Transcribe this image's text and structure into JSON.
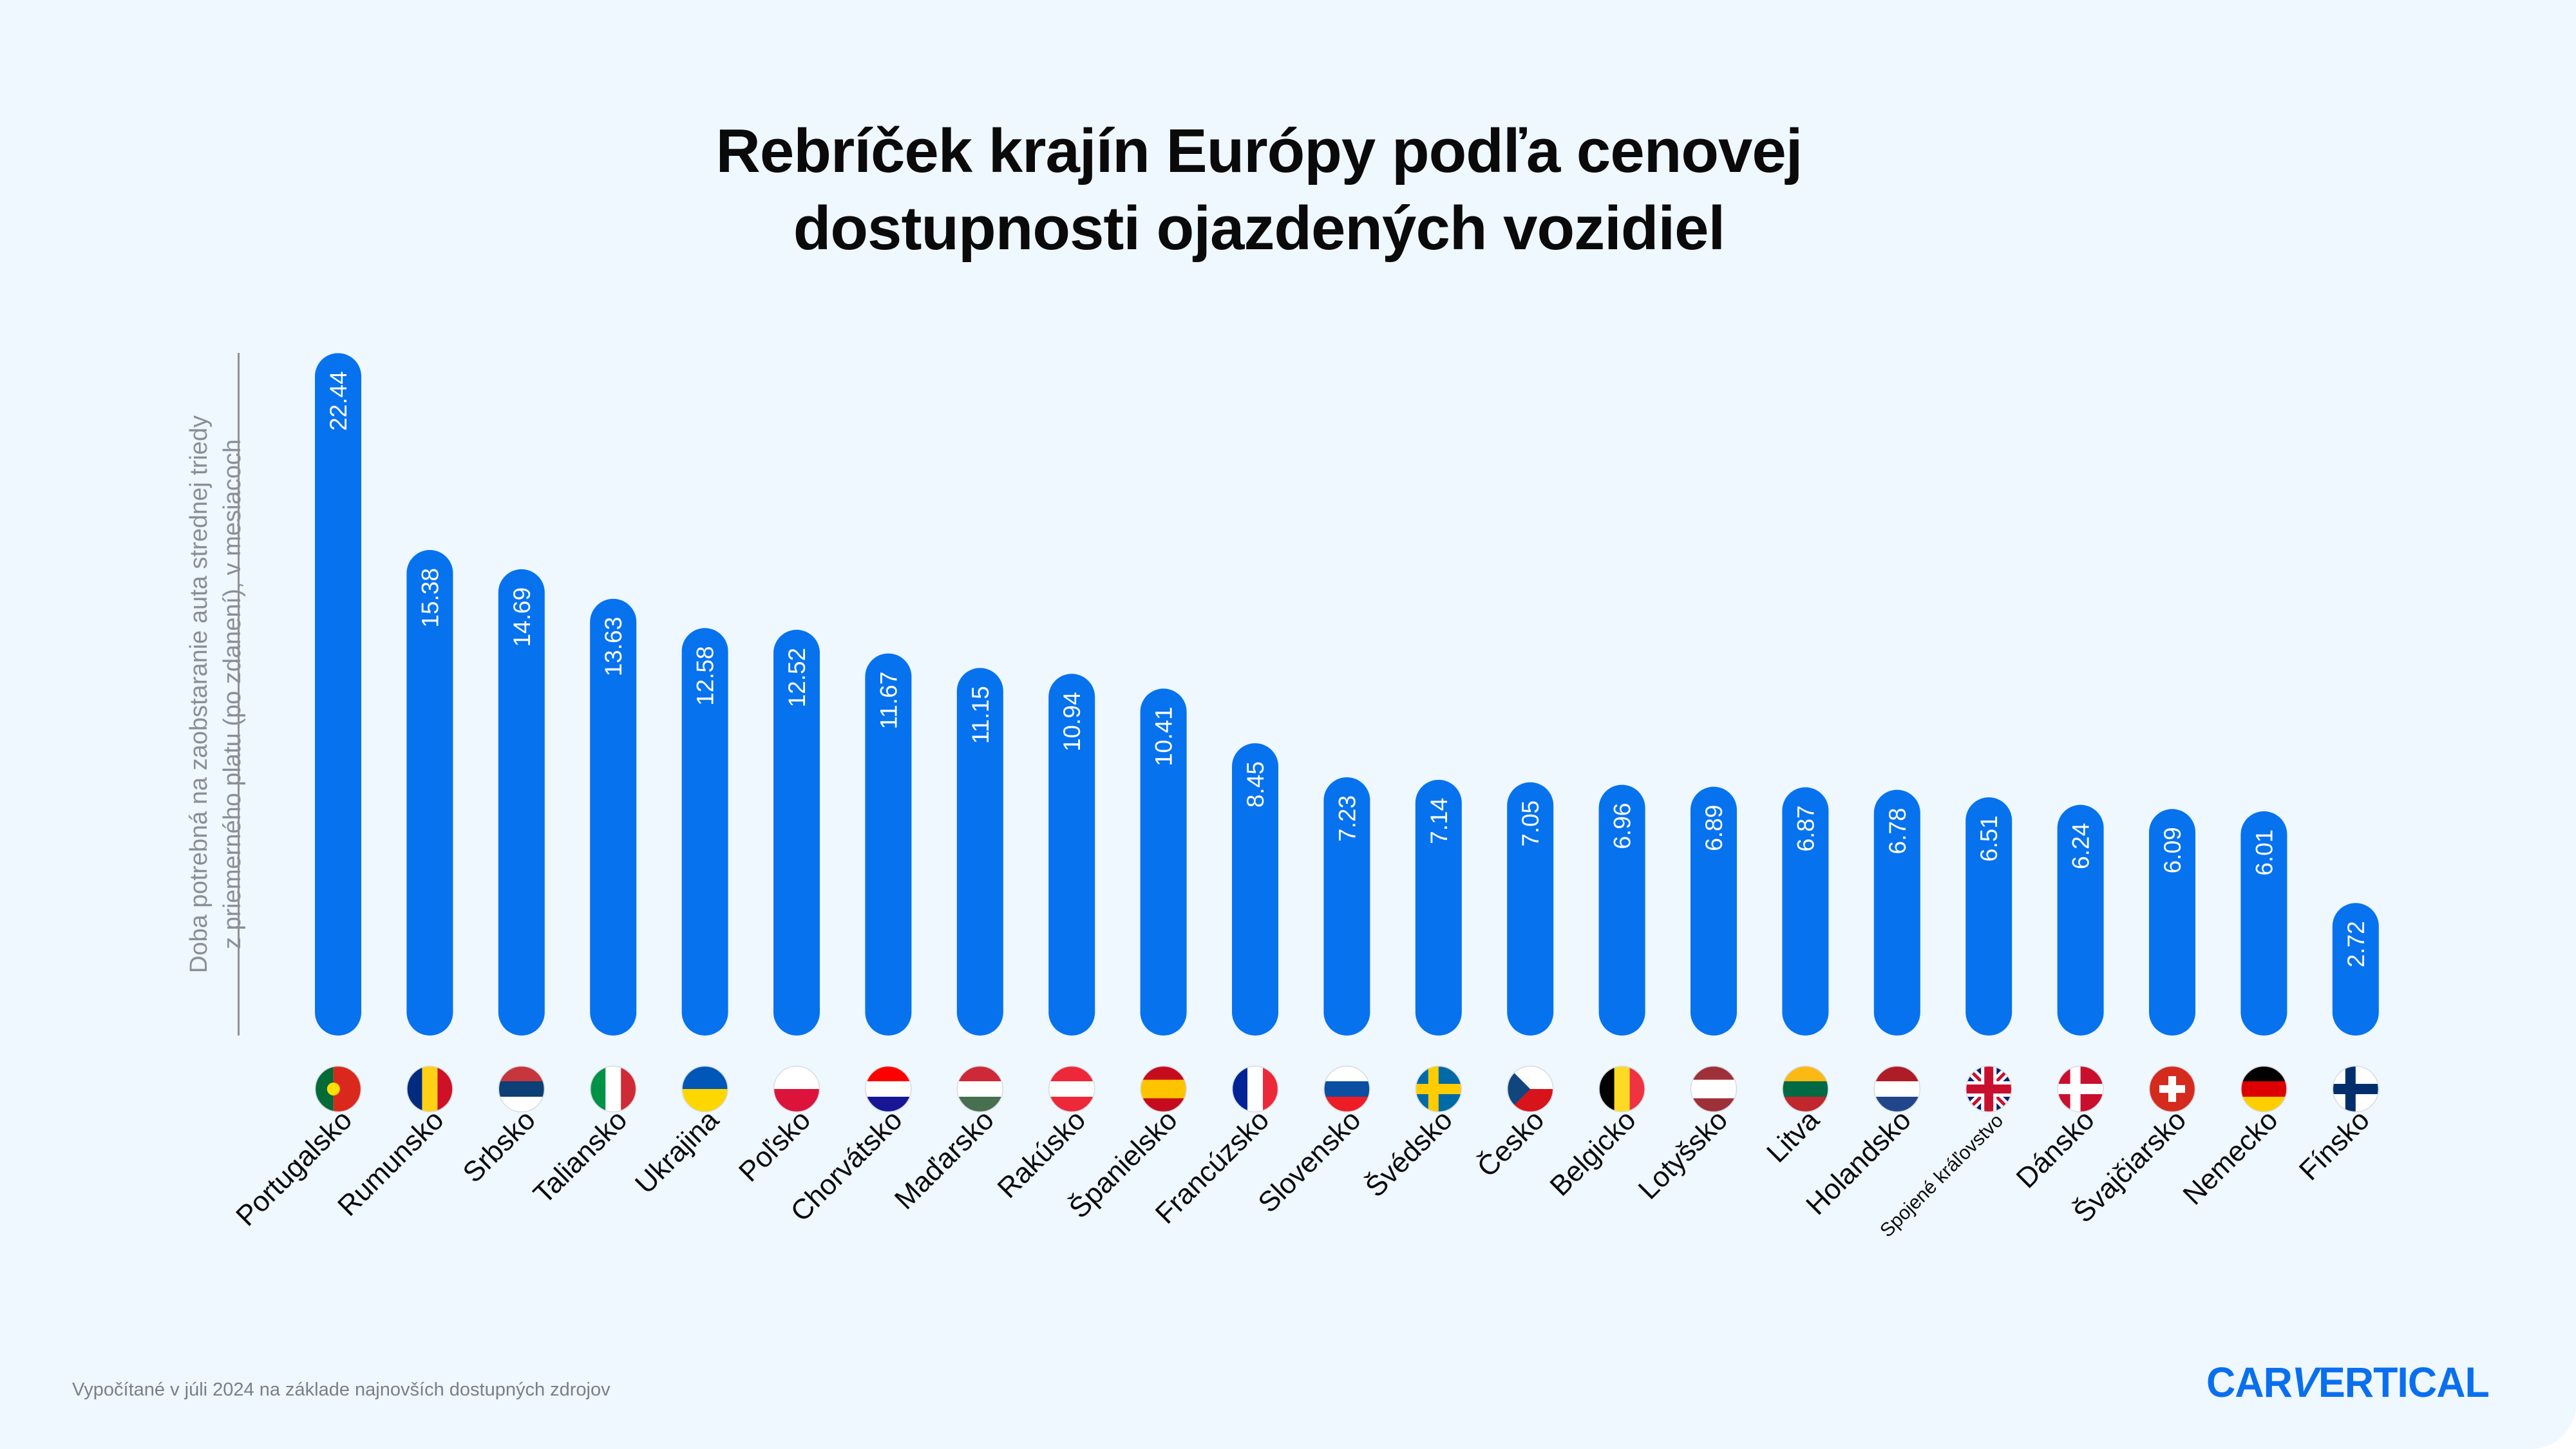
{
  "title_lines": [
    "Rebríček krajín Európy podľa cenovej",
    "dostupnosti ojazdených vozidiel"
  ],
  "footer": "Vypočítané v júli 2024 na základe najnovších dostupných zdrojov",
  "logo": {
    "left": "CAR",
    "v": "V",
    "right": "ERTICAL"
  },
  "colors": {
    "bar": "#0672ee",
    "background": "#eff7ff",
    "value_text": "#ffffff",
    "label_text": "#0a0a0a"
  },
  "chart_data": {
    "type": "bar",
    "title": "Rebríček krajín Európy podľa cenovej dostupnosti ojazdených vozidiel",
    "ylabel_lines": [
      "Doba potrebná na zaobstaranie auta strednej triedy",
      "z priemerného platu (po zdanení), v mesiacoch"
    ],
    "xlabel": "",
    "grid": false,
    "categories": [
      "Portugalsko",
      "Rumunsko",
      "Srbsko",
      "Taliansko",
      "Ukrajina",
      "Poľsko",
      "Chorvátsko",
      "Maďarsko",
      "Rakúsko",
      "Španielsko",
      "Francúzsko",
      "Slovensko",
      "Švédsko",
      "Česko",
      "Belgicko",
      "Lotyšsko",
      "Litva",
      "Holandsko",
      "Spojené kráľovstvo",
      "Dánsko",
      "Švajčiarsko",
      "Nemecko",
      "Fínsko"
    ],
    "values": [
      22.44,
      15.38,
      14.69,
      13.63,
      12.58,
      12.52,
      11.67,
      11.15,
      10.94,
      10.41,
      8.45,
      7.23,
      7.14,
      7.05,
      6.96,
      6.89,
      6.87,
      6.78,
      6.51,
      6.24,
      6.09,
      6.01,
      2.72
    ],
    "value_labels": [
      "22.44",
      "15.38",
      "14.69",
      "13.63",
      "12.58",
      "12.52",
      "11.67",
      "11.15",
      "10.94",
      "10.41",
      "8.45",
      "7.23",
      "7.14",
      "7.05",
      "6.96",
      "6.89",
      "6.87",
      "6.78",
      "6.51",
      "6.24",
      "6.09",
      "6.01",
      "2.72"
    ],
    "flags": [
      {
        "type": "v",
        "colors": [
          "#046a38",
          "#da291c",
          "#da291c"
        ]
      },
      {
        "type": "v",
        "colors": [
          "#002b7f",
          "#fcd116",
          "#ce1126"
        ]
      },
      {
        "type": "h",
        "colors": [
          "#c6363c",
          "#0c4076",
          "#ffffff"
        ]
      },
      {
        "type": "v",
        "colors": [
          "#009246",
          "#ffffff",
          "#ce2b37"
        ]
      },
      {
        "type": "h",
        "colors": [
          "#0057b7",
          "#ffd700"
        ]
      },
      {
        "type": "h",
        "colors": [
          "#ffffff",
          "#dc143c"
        ]
      },
      {
        "type": "h",
        "colors": [
          "#ff0000",
          "#ffffff",
          "#171796"
        ]
      },
      {
        "type": "h",
        "colors": [
          "#ce2939",
          "#ffffff",
          "#477050"
        ]
      },
      {
        "type": "h",
        "colors": [
          "#ed2939",
          "#ffffff",
          "#ed2939"
        ]
      },
      {
        "type": "h3",
        "colors": [
          "#c60b1e",
          "#ffc400",
          "#c60b1e"
        ]
      },
      {
        "type": "v",
        "colors": [
          "#002395",
          "#ffffff",
          "#ed2939"
        ]
      },
      {
        "type": "h",
        "colors": [
          "#ffffff",
          "#0b4ea2",
          "#ee1c25"
        ]
      },
      {
        "type": "cross",
        "colors": [
          "#006aa7",
          "#fecc00"
        ]
      },
      {
        "type": "cz",
        "colors": [
          "#ffffff",
          "#d7141a",
          "#11457e"
        ]
      },
      {
        "type": "v",
        "colors": [
          "#000000",
          "#fdda24",
          "#ef3340"
        ]
      },
      {
        "type": "h3",
        "colors": [
          "#9e3039",
          "#ffffff",
          "#9e3039"
        ]
      },
      {
        "type": "h",
        "colors": [
          "#fdb913",
          "#006a44",
          "#c1272d"
        ]
      },
      {
        "type": "h",
        "colors": [
          "#ae1c28",
          "#ffffff",
          "#21468b"
        ]
      },
      {
        "type": "uk",
        "colors": [
          "#012169",
          "#ffffff",
          "#c8102e"
        ]
      },
      {
        "type": "cross",
        "colors": [
          "#c8102e",
          "#ffffff"
        ]
      },
      {
        "type": "swiss",
        "colors": [
          "#d52b1e",
          "#ffffff"
        ]
      },
      {
        "type": "h",
        "colors": [
          "#000000",
          "#dd0000",
          "#ffce00"
        ]
      },
      {
        "type": "cross",
        "colors": [
          "#ffffff",
          "#002f6c"
        ]
      }
    ]
  }
}
